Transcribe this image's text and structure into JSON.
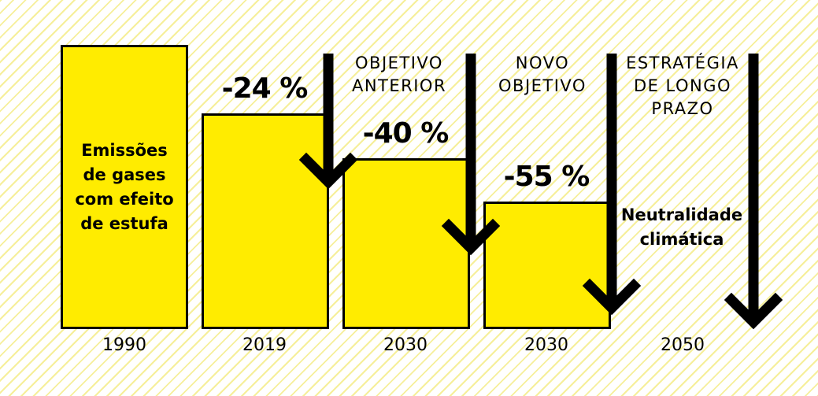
{
  "chart_data": {
    "type": "bar",
    "categories": [
      "1990",
      "2019",
      "2030",
      "2030",
      "2050"
    ],
    "reductions": [
      "",
      "-24 %",
      "-40 %",
      "-55 %",
      ""
    ],
    "values": [
      100,
      76,
      60,
      45,
      0
    ],
    "bar_label": "Emissões\nde gases\ncom efeito\nde estufa",
    "phases": [
      {
        "label": "OBJETIVO\nANTERIOR"
      },
      {
        "label": "NOVO\nOBJETIVO"
      },
      {
        "label": "ESTRATÉGIA\nDE LONGO\nPRAZO"
      }
    ],
    "end_label": "Neutralidade\nclimática",
    "colors": {
      "bar": "#ffec00",
      "border": "#000000",
      "arrow": "#000000",
      "stripe": "#f6ef9a"
    }
  }
}
